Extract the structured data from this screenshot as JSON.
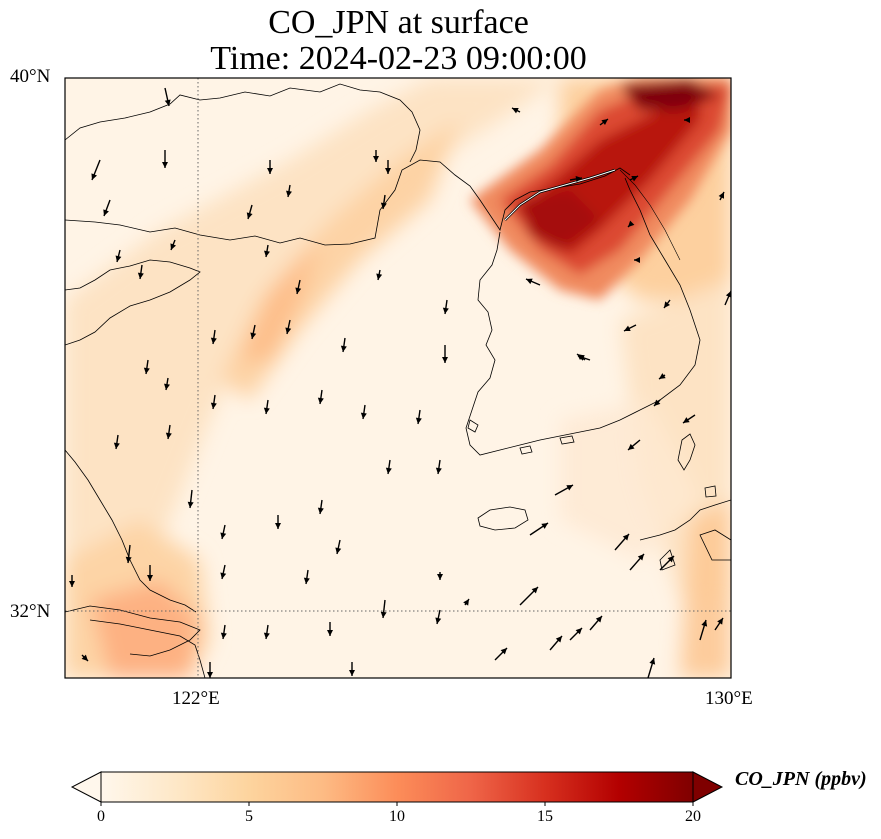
{
  "title": {
    "line1": "CO_JPN at surface",
    "line2": "Time: 2024-02-23 09:00:00"
  },
  "axes": {
    "lat_labels": [
      "40°N",
      "32°N"
    ],
    "lon_labels": [
      "122°E",
      "130°E"
    ],
    "lon_range": [
      120,
      130
    ],
    "lat_range": [
      31,
      40
    ],
    "gridlines": "dotted at 122°E and 32°N"
  },
  "colorbar": {
    "label": "CO_JPN (ppbv)",
    "ticks": [
      "0",
      "5",
      "10",
      "15",
      "20"
    ],
    "range": [
      0,
      20
    ],
    "extend": "both",
    "colormap": "OrRd",
    "colors": [
      "#fff7ec",
      "#fee8c8",
      "#fdd49e",
      "#fdbb84",
      "#fc8d59",
      "#ef6548",
      "#d7301f",
      "#b30000",
      "#7f0000"
    ]
  },
  "map_content": {
    "region": "Yellow Sea, Korean Peninsula, East China coast",
    "plume_max_location": "northern Korea / North Korean border region",
    "features": [
      "coastlines",
      "wind vectors",
      "concentration field"
    ]
  }
}
